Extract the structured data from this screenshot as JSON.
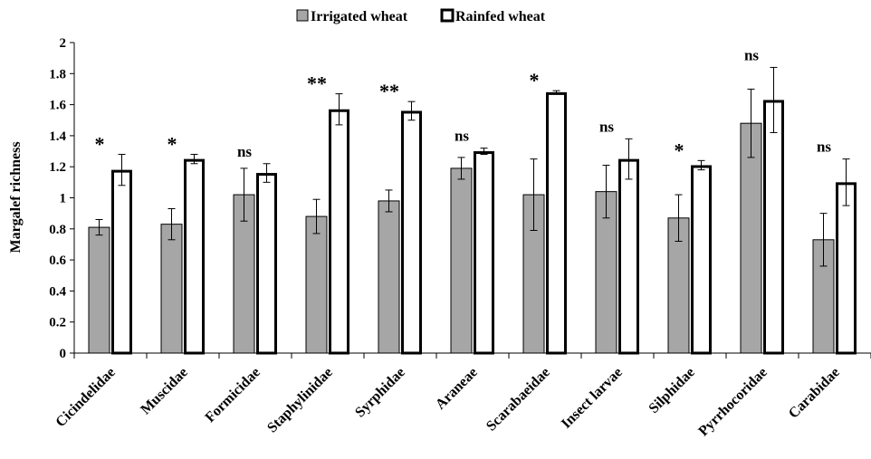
{
  "chart_data": {
    "type": "bar",
    "ylabel": "Margalef richness",
    "xlabel": "",
    "ylim": [
      0,
      2
    ],
    "yticks": [
      "0",
      "0.2",
      "0.4",
      "0.6",
      "0.8",
      "1",
      "1.2",
      "1.4",
      "1.6",
      "1.8",
      "2"
    ],
    "categories": [
      "Cicindelidae",
      "Muscidae",
      "Formicidae",
      "Staphylinidae",
      "Syrphidae",
      "Araneae",
      "Scarabaeidae",
      "Insect larvae",
      "Silphidae",
      "Pyrrhocoridae",
      "Carabidae"
    ],
    "series": [
      {
        "name": "Irrigated wheat",
        "color": "#a6a6a6",
        "values": [
          0.81,
          0.83,
          1.02,
          0.88,
          0.98,
          1.19,
          1.02,
          1.04,
          0.87,
          1.48,
          0.73
        ],
        "errors": [
          0.05,
          0.1,
          0.17,
          0.11,
          0.07,
          0.07,
          0.23,
          0.17,
          0.15,
          0.22,
          0.17
        ]
      },
      {
        "name": "Rainfed wheat",
        "color": "#ffffff",
        "values": [
          1.18,
          1.25,
          1.16,
          1.57,
          1.56,
          1.3,
          1.68,
          1.25,
          1.21,
          1.63,
          1.1
        ],
        "errors": [
          0.1,
          0.03,
          0.06,
          0.1,
          0.06,
          0.02,
          0.01,
          0.13,
          0.03,
          0.21,
          0.15
        ]
      }
    ],
    "significance": [
      "*",
      "*",
      "ns",
      "**",
      "**",
      "ns",
      "*",
      "ns",
      "*",
      "ns",
      "ns"
    ],
    "legend_position": "top-center",
    "grid": false
  }
}
